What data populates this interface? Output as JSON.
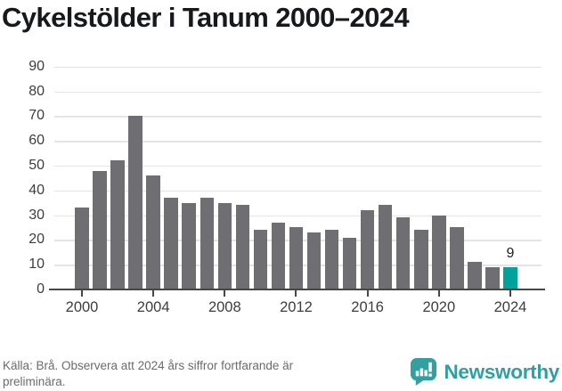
{
  "title": "Cykelstölder i Tanum 2000–2024",
  "chart_data": {
    "type": "bar",
    "title": "Cykelstölder i Tanum 2000–2024",
    "x": [
      2000,
      2001,
      2002,
      2003,
      2004,
      2005,
      2006,
      2007,
      2008,
      2009,
      2010,
      2011,
      2012,
      2013,
      2014,
      2015,
      2016,
      2017,
      2018,
      2019,
      2020,
      2021,
      2022,
      2023,
      2024
    ],
    "values": [
      33,
      48,
      52,
      70,
      46,
      37,
      35,
      37,
      35,
      34,
      24,
      27,
      25,
      23,
      24,
      21,
      32,
      34,
      29,
      24,
      30,
      25,
      11,
      9,
      9
    ],
    "highlight_x": 2024,
    "highlight_value_label": "9",
    "xlabel": "",
    "ylabel": "",
    "ylim": [
      0,
      95
    ],
    "y_ticks": [
      0,
      10,
      20,
      30,
      40,
      50,
      60,
      70,
      80,
      90
    ],
    "x_ticks": [
      2000,
      2004,
      2008,
      2012,
      2016,
      2020,
      2024
    ],
    "grid": "horizontal",
    "legend": "none"
  },
  "colors": {
    "bar": "#6e6e73",
    "highlight": "#00a29c",
    "grid": "#e4e4e4",
    "axis_line": "#474747",
    "axis_text": "#3d3d3d",
    "title_text": "#17191c",
    "footer_text": "#6b6b6b",
    "brand": "#33a0a0"
  },
  "footer": {
    "source_text": "Källa: Brå. Observera att 2024 års siffror fortfarande är preliminära.",
    "brand_name": "Newsworthy"
  }
}
